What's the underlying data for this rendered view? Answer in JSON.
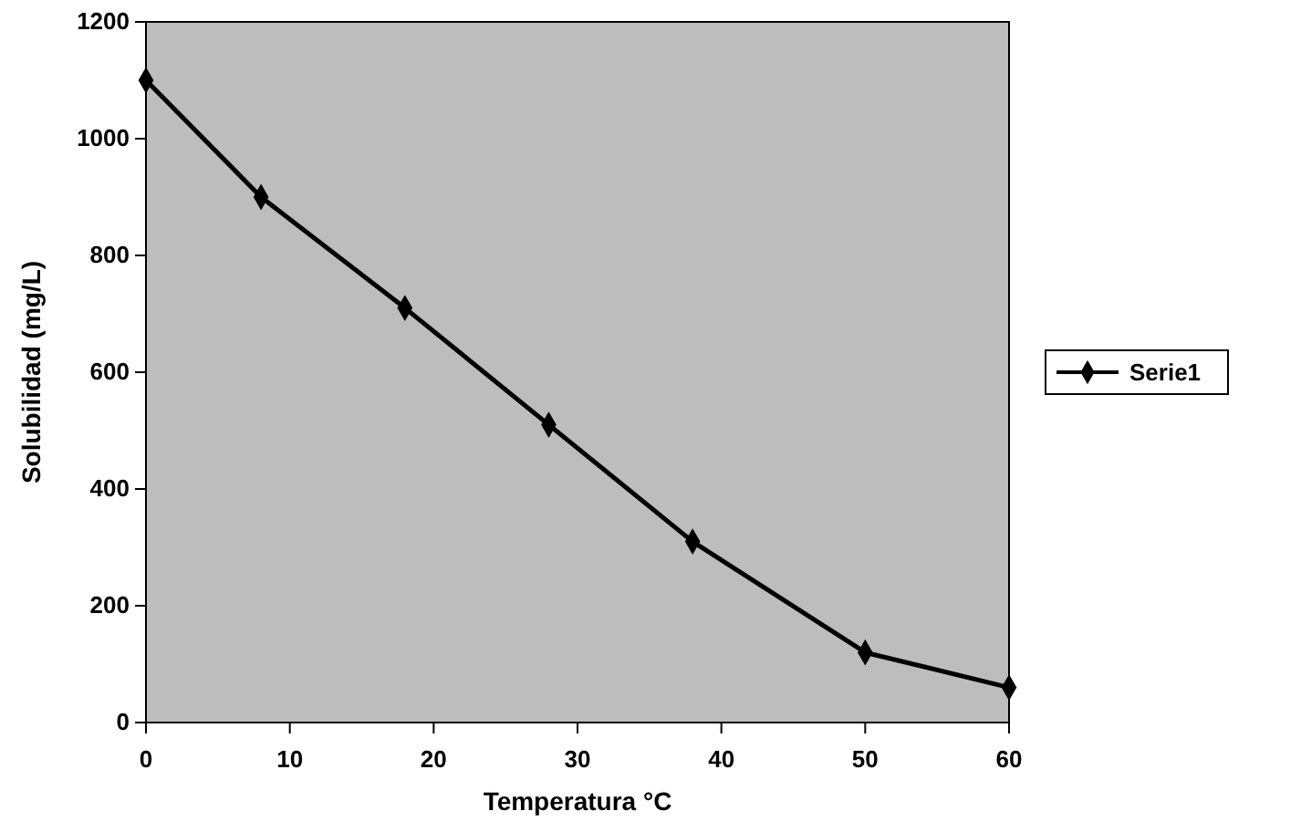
{
  "chart_data": {
    "type": "line",
    "xlabel": "Temperatura °C",
    "ylabel": "Solubilidad (mg/L)",
    "x": [
      0,
      8,
      18,
      28,
      38,
      50,
      60
    ],
    "series": [
      {
        "name": "Serie1",
        "color": "#000000",
        "values": [
          1100,
          900,
          710,
          510,
          310,
          120,
          60
        ]
      }
    ],
    "xlim": [
      0,
      60
    ],
    "xticks": [
      0,
      10,
      20,
      30,
      40,
      50,
      60
    ],
    "ylim": [
      0,
      1200
    ],
    "yticks": [
      0,
      200,
      400,
      600,
      800,
      1000,
      1200
    ],
    "marker": "diamond",
    "legend": "right",
    "grid": false
  }
}
